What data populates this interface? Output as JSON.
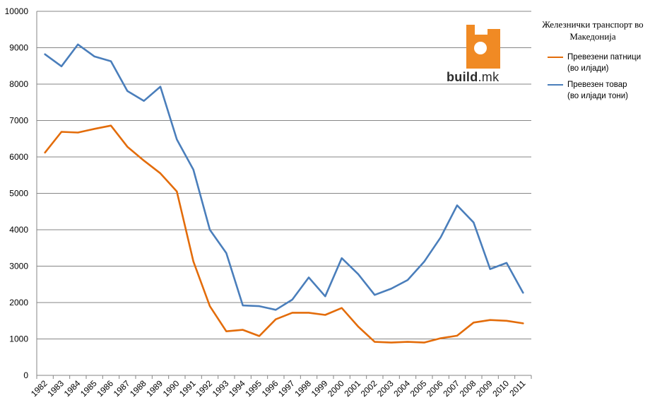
{
  "chart_data": {
    "type": "line",
    "title": "Железнички транспорт во Македонија",
    "x": [
      "1982",
      "1983",
      "1984",
      "1985",
      "1986",
      "1987",
      "1988",
      "1989",
      "1990",
      "1991",
      "1992",
      "1993",
      "1994",
      "1995",
      "1996",
      "1997",
      "1998",
      "1999",
      "2000",
      "2001",
      "2002",
      "2003",
      "2004",
      "2005",
      "2006",
      "2007",
      "2008",
      "2009",
      "2010",
      "2011"
    ],
    "ylim": [
      0,
      10000
    ],
    "yticks": [
      0,
      1000,
      2000,
      3000,
      4000,
      5000,
      6000,
      7000,
      8000,
      9000,
      10000
    ],
    "grid": true,
    "legend_position": "right",
    "series": [
      {
        "name_line1": "Превезени патници",
        "name_line2": "(во илјади)",
        "color": "#E36C0A",
        "values": [
          6120,
          6690,
          6670,
          6770,
          6860,
          6280,
          5900,
          5550,
          5050,
          3130,
          1900,
          1210,
          1250,
          1080,
          1540,
          1720,
          1720,
          1660,
          1850,
          1340,
          920,
          900,
          920,
          900,
          1020,
          1090,
          1450,
          1520,
          1500,
          1430
        ]
      },
      {
        "name_line1": "Превезен товар",
        "name_line2": "(во илјади тони)",
        "color": "#4A7EBB",
        "values": [
          8820,
          8490,
          9090,
          8760,
          8630,
          7810,
          7540,
          7930,
          6480,
          5650,
          4000,
          3360,
          1920,
          1900,
          1800,
          2080,
          2690,
          2170,
          3220,
          2780,
          2210,
          2380,
          2620,
          3120,
          3790,
          4670,
          4200,
          2920,
          3090,
          2270
        ]
      }
    ]
  },
  "logo": {
    "word_bold": "build",
    "word_suffix": ".mk",
    "accent_color": "#F08A24"
  }
}
